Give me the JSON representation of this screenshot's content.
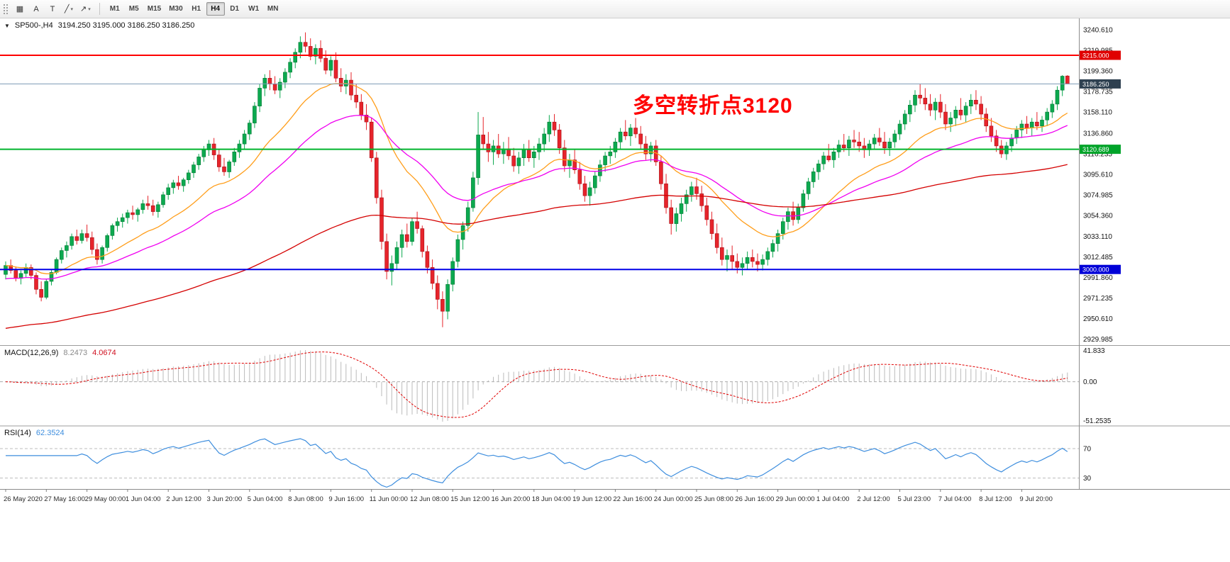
{
  "toolbar": {
    "tools": [
      {
        "id": "chart-grid-tool",
        "glyph": "▦",
        "dropdown": false
      },
      {
        "id": "text-annotation-tool",
        "glyph": "A",
        "dropdown": false
      },
      {
        "id": "text-label-tool",
        "glyph": "T",
        "dropdown": false
      },
      {
        "id": "line-studies-tool",
        "glyph": "╱",
        "dropdown": true
      },
      {
        "id": "arrow-objects-tool",
        "glyph": "↗",
        "dropdown": true
      }
    ],
    "timeframes": [
      "M1",
      "M5",
      "M15",
      "M30",
      "H1",
      "H4",
      "D1",
      "W1",
      "MN"
    ],
    "active_timeframe": "H4"
  },
  "chart_header": {
    "collapse_icon": "▼",
    "symbol_period": "SP500-,H4",
    "ohlc": "3194.250 3195.000 3186.250 3186.250"
  },
  "annotation": {
    "text": "多空转折点3120",
    "color": "#FF0000"
  },
  "macd_header": {
    "label": "MACD(12,26,9)",
    "main_value": "8.2473",
    "signal_value": "4.0674"
  },
  "rsi_header": {
    "label": "RSI(14)",
    "value": "62.3524"
  },
  "chart_data": {
    "type": "candlestick",
    "symbol": "SP500-",
    "timeframe": "H4",
    "ylim": [
      2924,
      3252
    ],
    "price_axis_labels": [
      "3240.610",
      "3219.985",
      "3199.360",
      "3178.735",
      "3158.110",
      "3136.860",
      "3116.235",
      "3095.610",
      "3074.985",
      "3054.360",
      "3033.110",
      "3012.485",
      "2991.860",
      "2971.235",
      "2950.610",
      "2929.985"
    ],
    "time_labels": [
      "26 May 2020",
      "27 May 16:00",
      "29 May 00:00",
      "1 Jun 04:00",
      "2 Jun 12:00",
      "3 Jun 20:00",
      "5 Jun 04:00",
      "8 Jun 08:00",
      "9 Jun 16:00",
      "11 Jun 00:00",
      "12 Jun 08:00",
      "15 Jun 12:00",
      "16 Jun 20:00",
      "18 Jun 04:00",
      "19 Jun 12:00",
      "22 Jun 16:00",
      "24 Jun 00:00",
      "25 Jun 08:00",
      "26 Jun 16:00",
      "29 Jun 00:00",
      "1 Jul 04:00",
      "2 Jul 12:00",
      "5 Jul 23:00",
      "7 Jul 04:00",
      "8 Jul 12:00",
      "9 Jul 20:00"
    ],
    "label_every_n_bars": 8,
    "candles": [
      [
        2995,
        3008,
        2990,
        3004
      ],
      [
        3004,
        3010,
        2996,
        2999
      ],
      [
        2999,
        3003,
        2988,
        2991
      ],
      [
        2991,
        2999,
        2985,
        2996
      ],
      [
        2996,
        3006,
        2992,
        3002
      ],
      [
        3002,
        3005,
        2990,
        2994
      ],
      [
        2994,
        2997,
        2975,
        2980
      ],
      [
        2980,
        2988,
        2968,
        2972
      ],
      [
        2972,
        2990,
        2970,
        2988
      ],
      [
        2988,
        3000,
        2984,
        2997
      ],
      [
        2997,
        3012,
        2995,
        3010
      ],
      [
        3010,
        3022,
        3006,
        3019
      ],
      [
        3019,
        3028,
        3012,
        3024
      ],
      [
        3024,
        3036,
        3020,
        3033
      ],
      [
        3033,
        3040,
        3025,
        3029
      ],
      [
        3029,
        3040,
        3026,
        3036
      ],
      [
        3036,
        3045,
        3028,
        3032
      ],
      [
        3032,
        3038,
        3015,
        3020
      ],
      [
        3020,
        3026,
        3005,
        3010
      ],
      [
        3010,
        3024,
        3006,
        3022
      ],
      [
        3022,
        3036,
        3018,
        3034
      ],
      [
        3034,
        3046,
        3030,
        3044
      ],
      [
        3044,
        3052,
        3038,
        3048
      ],
      [
        3048,
        3056,
        3042,
        3052
      ],
      [
        3052,
        3060,
        3046,
        3057
      ],
      [
        3057,
        3064,
        3050,
        3055
      ],
      [
        3055,
        3062,
        3048,
        3060
      ],
      [
        3060,
        3070,
        3056,
        3066
      ],
      [
        3066,
        3074,
        3060,
        3064
      ],
      [
        3064,
        3070,
        3054,
        3058
      ],
      [
        3058,
        3068,
        3052,
        3065
      ],
      [
        3065,
        3078,
        3062,
        3075
      ],
      [
        3075,
        3086,
        3070,
        3082
      ],
      [
        3082,
        3090,
        3076,
        3087
      ],
      [
        3087,
        3094,
        3080,
        3084
      ],
      [
        3084,
        3092,
        3078,
        3090
      ],
      [
        3090,
        3100,
        3086,
        3097
      ],
      [
        3097,
        3108,
        3092,
        3105
      ],
      [
        3105,
        3116,
        3100,
        3113
      ],
      [
        3113,
        3124,
        3108,
        3120
      ],
      [
        3120,
        3130,
        3114,
        3126
      ],
      [
        3126,
        3132,
        3110,
        3115
      ],
      [
        3115,
        3120,
        3098,
        3103
      ],
      [
        3103,
        3112,
        3094,
        3098
      ],
      [
        3098,
        3110,
        3092,
        3108
      ],
      [
        3108,
        3122,
        3104,
        3118
      ],
      [
        3118,
        3130,
        3112,
        3126
      ],
      [
        3126,
        3140,
        3120,
        3136
      ],
      [
        3136,
        3150,
        3130,
        3147
      ],
      [
        3147,
        3168,
        3142,
        3164
      ],
      [
        3164,
        3186,
        3158,
        3182
      ],
      [
        3182,
        3196,
        3174,
        3192
      ],
      [
        3192,
        3200,
        3180,
        3186
      ],
      [
        3186,
        3194,
        3176,
        3180
      ],
      [
        3180,
        3192,
        3172,
        3188
      ],
      [
        3188,
        3202,
        3182,
        3198
      ],
      [
        3198,
        3212,
        3192,
        3208
      ],
      [
        3208,
        3222,
        3202,
        3218
      ],
      [
        3218,
        3234,
        3212,
        3228
      ],
      [
        3228,
        3238,
        3218,
        3224
      ],
      [
        3224,
        3232,
        3210,
        3214
      ],
      [
        3214,
        3226,
        3206,
        3222
      ],
      [
        3222,
        3230,
        3208,
        3212
      ],
      [
        3212,
        3220,
        3196,
        3200
      ],
      [
        3200,
        3214,
        3194,
        3210
      ],
      [
        3210,
        3218,
        3188,
        3192
      ],
      [
        3192,
        3202,
        3178,
        3184
      ],
      [
        3184,
        3196,
        3176,
        3190
      ],
      [
        3190,
        3198,
        3170,
        3175
      ],
      [
        3175,
        3186,
        3162,
        3168
      ],
      [
        3168,
        3176,
        3150,
        3155
      ],
      [
        3155,
        3166,
        3140,
        3148
      ],
      [
        3148,
        3152,
        3108,
        3112
      ],
      [
        3112,
        3118,
        3066,
        3072
      ],
      [
        3072,
        3080,
        3020,
        3028
      ],
      [
        3028,
        3036,
        2990,
        2998
      ],
      [
        2998,
        3014,
        2984,
        3006
      ],
      [
        3006,
        3028,
        3000,
        3022
      ],
      [
        3022,
        3040,
        3012,
        3035
      ],
      [
        3035,
        3046,
        3022,
        3028
      ],
      [
        3028,
        3052,
        3024,
        3048
      ],
      [
        3048,
        3058,
        3036,
        3041
      ],
      [
        3041,
        3044,
        3012,
        3018
      ],
      [
        3018,
        3024,
        2996,
        3002
      ],
      [
        3002,
        3010,
        2980,
        2986
      ],
      [
        2986,
        2994,
        2960,
        2970
      ],
      [
        2970,
        2978,
        2942,
        2958
      ],
      [
        2958,
        2990,
        2950,
        2985
      ],
      [
        2985,
        3012,
        2978,
        3008
      ],
      [
        3008,
        3035,
        3002,
        3030
      ],
      [
        3030,
        3048,
        3020,
        3044
      ],
      [
        3044,
        3068,
        3038,
        3062
      ],
      [
        3062,
        3098,
        3058,
        3092
      ],
      [
        3092,
        3158,
        3085,
        3135
      ],
      [
        3135,
        3153,
        3120,
        3126
      ],
      [
        3126,
        3138,
        3108,
        3118
      ],
      [
        3118,
        3130,
        3105,
        3124
      ],
      [
        3124,
        3136,
        3112,
        3116
      ],
      [
        3116,
        3128,
        3106,
        3121
      ],
      [
        3121,
        3133,
        3110,
        3114
      ],
      [
        3114,
        3122,
        3098,
        3104
      ],
      [
        3104,
        3118,
        3096,
        3112
      ],
      [
        3112,
        3126,
        3104,
        3120
      ],
      [
        3120,
        3130,
        3108,
        3112
      ],
      [
        3112,
        3124,
        3102,
        3118
      ],
      [
        3118,
        3132,
        3110,
        3126
      ],
      [
        3126,
        3142,
        3118,
        3136
      ],
      [
        3136,
        3155,
        3128,
        3148
      ],
      [
        3148,
        3156,
        3134,
        3140
      ],
      [
        3140,
        3146,
        3116,
        3122
      ],
      [
        3122,
        3130,
        3098,
        3104
      ],
      [
        3104,
        3116,
        3092,
        3110
      ],
      [
        3110,
        3120,
        3096,
        3100
      ],
      [
        3100,
        3108,
        3080,
        3086
      ],
      [
        3086,
        3094,
        3068,
        3074
      ],
      [
        3074,
        3088,
        3064,
        3082
      ],
      [
        3082,
        3098,
        3076,
        3094
      ],
      [
        3094,
        3110,
        3088,
        3105
      ],
      [
        3105,
        3118,
        3098,
        3114
      ],
      [
        3114,
        3124,
        3106,
        3118
      ],
      [
        3118,
        3132,
        3112,
        3128
      ],
      [
        3128,
        3142,
        3120,
        3138
      ],
      [
        3138,
        3150,
        3130,
        3134
      ],
      [
        3134,
        3146,
        3124,
        3142
      ],
      [
        3142,
        3152,
        3132,
        3136
      ],
      [
        3136,
        3144,
        3120,
        3126
      ],
      [
        3126,
        3134,
        3110,
        3116
      ],
      [
        3116,
        3128,
        3108,
        3124
      ],
      [
        3124,
        3130,
        3104,
        3108
      ],
      [
        3108,
        3114,
        3080,
        3086
      ],
      [
        3086,
        3096,
        3056,
        3062
      ],
      [
        3062,
        3070,
        3035,
        3046
      ],
      [
        3046,
        3062,
        3038,
        3056
      ],
      [
        3056,
        3072,
        3048,
        3066
      ],
      [
        3066,
        3080,
        3058,
        3075
      ],
      [
        3075,
        3088,
        3068,
        3083
      ],
      [
        3083,
        3092,
        3070,
        3076
      ],
      [
        3076,
        3084,
        3058,
        3064
      ],
      [
        3064,
        3072,
        3044,
        3050
      ],
      [
        3050,
        3058,
        3030,
        3036
      ],
      [
        3036,
        3046,
        3016,
        3022
      ],
      [
        3022,
        3032,
        3004,
        3010
      ],
      [
        3010,
        3020,
        2998,
        3014
      ],
      [
        3014,
        3024,
        3000,
        3008
      ],
      [
        3008,
        3016,
        2996,
        3002
      ],
      [
        3002,
        3012,
        2994,
        3006
      ],
      [
        3006,
        3018,
        3000,
        3012
      ],
      [
        3012,
        3020,
        3002,
        3008
      ],
      [
        3008,
        3016,
        2998,
        3005
      ],
      [
        3005,
        3015,
        2999,
        3010
      ],
      [
        3010,
        3022,
        3004,
        3018
      ],
      [
        3018,
        3030,
        3012,
        3026
      ],
      [
        3026,
        3040,
        3018,
        3036
      ],
      [
        3036,
        3052,
        3030,
        3048
      ],
      [
        3048,
        3062,
        3040,
        3058
      ],
      [
        3058,
        3068,
        3044,
        3050
      ],
      [
        3050,
        3066,
        3046,
        3062
      ],
      [
        3062,
        3080,
        3058,
        3076
      ],
      [
        3076,
        3092,
        3070,
        3088
      ],
      [
        3088,
        3102,
        3082,
        3098
      ],
      [
        3098,
        3110,
        3090,
        3106
      ],
      [
        3106,
        3118,
        3100,
        3114
      ],
      [
        3114,
        3126,
        3108,
        3110
      ],
      [
        3110,
        3122,
        3102,
        3118
      ],
      [
        3118,
        3130,
        3112,
        3125
      ],
      [
        3125,
        3136,
        3118,
        3122
      ],
      [
        3122,
        3134,
        3114,
        3130
      ],
      [
        3130,
        3140,
        3122,
        3128
      ],
      [
        3128,
        3138,
        3118,
        3124
      ],
      [
        3124,
        3132,
        3112,
        3120
      ],
      [
        3120,
        3130,
        3114,
        3126
      ],
      [
        3126,
        3136,
        3120,
        3132
      ],
      [
        3132,
        3142,
        3124,
        3128
      ],
      [
        3128,
        3138,
        3116,
        3122
      ],
      [
        3122,
        3132,
        3114,
        3128
      ],
      [
        3128,
        3140,
        3122,
        3136
      ],
      [
        3136,
        3150,
        3130,
        3146
      ],
      [
        3146,
        3160,
        3140,
        3156
      ],
      [
        3156,
        3170,
        3148,
        3165
      ],
      [
        3165,
        3180,
        3158,
        3175
      ],
      [
        3175,
        3186,
        3166,
        3172
      ],
      [
        3172,
        3182,
        3160,
        3166
      ],
      [
        3166,
        3176,
        3154,
        3160
      ],
      [
        3160,
        3172,
        3150,
        3168
      ],
      [
        3168,
        3176,
        3152,
        3158
      ],
      [
        3158,
        3166,
        3140,
        3146
      ],
      [
        3146,
        3158,
        3138,
        3152
      ],
      [
        3152,
        3164,
        3144,
        3160
      ],
      [
        3160,
        3172,
        3150,
        3155
      ],
      [
        3155,
        3168,
        3148,
        3164
      ],
      [
        3164,
        3176,
        3156,
        3170
      ],
      [
        3170,
        3180,
        3160,
        3166
      ],
      [
        3166,
        3174,
        3150,
        3156
      ],
      [
        3156,
        3162,
        3138,
        3144
      ],
      [
        3144,
        3152,
        3128,
        3134
      ],
      [
        3134,
        3140,
        3118,
        3124
      ],
      [
        3124,
        3130,
        3112,
        3116
      ],
      [
        3116,
        3128,
        3110,
        3124
      ],
      [
        3124,
        3136,
        3118,
        3132
      ],
      [
        3132,
        3144,
        3126,
        3140
      ],
      [
        3140,
        3150,
        3132,
        3146
      ],
      [
        3146,
        3154,
        3136,
        3142
      ],
      [
        3142,
        3152,
        3134,
        3148
      ],
      [
        3148,
        3158,
        3140,
        3144
      ],
      [
        3144,
        3154,
        3138,
        3150
      ],
      [
        3150,
        3162,
        3144,
        3158
      ],
      [
        3158,
        3170,
        3152,
        3166
      ],
      [
        3166,
        3184,
        3160,
        3180
      ],
      [
        3180,
        3195,
        3174,
        3194
      ],
      [
        3194.25,
        3195,
        3186.25,
        3186.25
      ]
    ],
    "moving_averages": [
      {
        "name": "fast-ma",
        "period": 20,
        "color": "#FF9E1B",
        "seed": null
      },
      {
        "name": "mid-ma",
        "period": 40,
        "color": "#F000F0",
        "seed": 2990
      },
      {
        "name": "slow-ma",
        "period": 144,
        "color": "#D40000",
        "seed": 2940
      }
    ],
    "horizontal_lines": [
      {
        "label": "3215.000",
        "price": 3215.0,
        "color": "#FF0000",
        "tag": "#E00000",
        "width": 2
      },
      {
        "label": "3186.250",
        "price": 3186.25,
        "color": "#7D9AB5",
        "tag": "#2E4050",
        "width": 1
      },
      {
        "label": "3120.689",
        "price": 3120.689,
        "color": "#00B42D",
        "tag": "#00A42A",
        "width": 2
      },
      {
        "label": "3000.000",
        "price": 3000.0,
        "color": "#0000E8",
        "tag": "#0000D8",
        "width": 2
      }
    ],
    "colors": {
      "up": "#0CA94F",
      "up_border": "#067A36",
      "down": "#E6242B",
      "down_border": "#A8121A",
      "background": "#FFFFFF",
      "axis_text": "#141414",
      "pane_border": "#8C8C8C"
    },
    "indicators": {
      "macd": {
        "label": "MACD(12,26,9)",
        "fast": 12,
        "slow": 26,
        "signal": 9,
        "axis_labels": [
          "41.833",
          "0.00",
          "-51.2535"
        ],
        "histogram_color": "#BBBBBB",
        "signal_color": "#E00000"
      },
      "rsi": {
        "label": "RSI(14)",
        "period": 14,
        "scale_min": 15,
        "scale_max": 100,
        "levels": [
          {
            "value": 70,
            "label": "70"
          },
          {
            "value": 30,
            "label": "30"
          }
        ],
        "line_color": "#3E8EDE",
        "level_color": "#BDBDBD"
      }
    }
  }
}
